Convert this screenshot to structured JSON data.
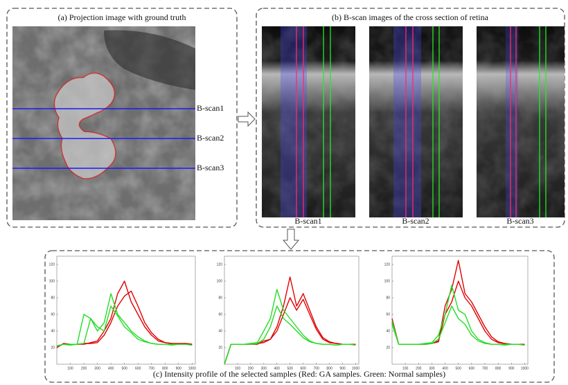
{
  "panel_a": {
    "title": "(a) Projection image with ground truth",
    "scan_labels": [
      "B-scan1",
      "B-scan2",
      "B-scan3"
    ]
  },
  "panel_b": {
    "title": "(b) B-scan images of the cross section of retina",
    "labels": [
      "B-scan1",
      "B-scan2",
      "B-scan3"
    ]
  },
  "panel_c": {
    "caption": "(c) Intensity profile of the selected samples (Red: GA samples. Green: Normal samples)"
  },
  "chart_data": [
    {
      "type": "line",
      "x": [
        0,
        50,
        100,
        150,
        200,
        250,
        300,
        350,
        400,
        450,
        500,
        550,
        600,
        650,
        700,
        750,
        800,
        850,
        900,
        950,
        1000
      ],
      "xlim": [
        0,
        1024
      ],
      "ylim": [
        0,
        130
      ],
      "xticks": [
        100,
        200,
        300,
        400,
        500,
        600,
        700,
        800,
        900,
        1000
      ],
      "yticks": [
        20,
        40,
        60,
        80,
        100,
        120
      ],
      "series": [
        {
          "color": "#e00000",
          "values": [
            20,
            25,
            24,
            24,
            24,
            26,
            28,
            40,
            55,
            85,
            100,
            75,
            60,
            45,
            35,
            28,
            26,
            25,
            25,
            25,
            24
          ]
        },
        {
          "color": "#e00000",
          "values": [
            22,
            24,
            24,
            24,
            25,
            25,
            26,
            35,
            50,
            70,
            82,
            88,
            70,
            50,
            38,
            30,
            26,
            25,
            24,
            25,
            24
          ]
        },
        {
          "color": "#22dd22",
          "values": [
            22,
            24,
            23,
            24,
            60,
            55,
            40,
            50,
            85,
            60,
            50,
            40,
            33,
            28,
            25,
            24,
            24,
            24,
            24,
            24,
            23
          ]
        },
        {
          "color": "#22dd22",
          "values": [
            22,
            24,
            24,
            24,
            25,
            55,
            45,
            40,
            70,
            58,
            45,
            38,
            30,
            27,
            25,
            24,
            24,
            23,
            24,
            24,
            23
          ]
        }
      ]
    },
    {
      "type": "line",
      "x": [
        0,
        50,
        100,
        150,
        200,
        250,
        300,
        350,
        400,
        450,
        500,
        550,
        600,
        650,
        700,
        750,
        800,
        850,
        900,
        950,
        1000
      ],
      "xlim": [
        0,
        1024
      ],
      "ylim": [
        0,
        130
      ],
      "xticks": [
        100,
        200,
        300,
        400,
        500,
        600,
        700,
        800,
        900,
        1000
      ],
      "yticks": [
        20,
        40,
        60,
        80,
        100,
        120
      ],
      "series": [
        {
          "color": "#e00000",
          "values": [
            0,
            24,
            24,
            24,
            24,
            24,
            28,
            30,
            45,
            70,
            105,
            70,
            85,
            65,
            45,
            32,
            27,
            25,
            24,
            24,
            24
          ]
        },
        {
          "color": "#e00000",
          "values": [
            0,
            24,
            24,
            24,
            24,
            25,
            26,
            30,
            40,
            60,
            80,
            65,
            78,
            60,
            42,
            30,
            26,
            25,
            24,
            24,
            24
          ]
        },
        {
          "color": "#22dd22",
          "values": [
            0,
            24,
            24,
            24,
            25,
            26,
            40,
            55,
            90,
            65,
            55,
            45,
            35,
            28,
            25,
            24,
            24,
            23,
            24,
            24,
            23
          ]
        },
        {
          "color": "#22dd22",
          "values": [
            0,
            24,
            24,
            24,
            24,
            25,
            30,
            45,
            70,
            55,
            48,
            40,
            32,
            27,
            25,
            24,
            24,
            23,
            24,
            24,
            23
          ]
        }
      ]
    },
    {
      "type": "line",
      "x": [
        0,
        50,
        100,
        150,
        200,
        250,
        300,
        350,
        400,
        450,
        500,
        550,
        600,
        650,
        700,
        750,
        800,
        850,
        900,
        950,
        1000
      ],
      "xlim": [
        0,
        1024
      ],
      "ylim": [
        0,
        130
      ],
      "xticks": [
        100,
        200,
        300,
        400,
        500,
        600,
        700,
        800,
        900,
        1000
      ],
      "yticks": [
        20,
        40,
        60,
        80,
        100,
        120
      ],
      "series": [
        {
          "color": "#e00000",
          "values": [
            55,
            24,
            24,
            24,
            24,
            24,
            25,
            28,
            70,
            90,
            125,
            85,
            75,
            60,
            45,
            33,
            27,
            25,
            24,
            24,
            24
          ]
        },
        {
          "color": "#e00000",
          "values": [
            50,
            24,
            24,
            24,
            24,
            24,
            25,
            27,
            60,
            75,
            100,
            80,
            70,
            55,
            40,
            30,
            26,
            25,
            24,
            24,
            24
          ]
        },
        {
          "color": "#22dd22",
          "values": [
            52,
            24,
            24,
            24,
            24,
            25,
            26,
            35,
            60,
            95,
            65,
            60,
            40,
            30,
            26,
            24,
            24,
            24,
            24,
            24,
            23
          ]
        },
        {
          "color": "#22dd22",
          "values": [
            48,
            24,
            24,
            24,
            24,
            24,
            25,
            30,
            50,
            70,
            55,
            48,
            35,
            28,
            25,
            24,
            24,
            23,
            24,
            24,
            23
          ]
        }
      ]
    }
  ]
}
